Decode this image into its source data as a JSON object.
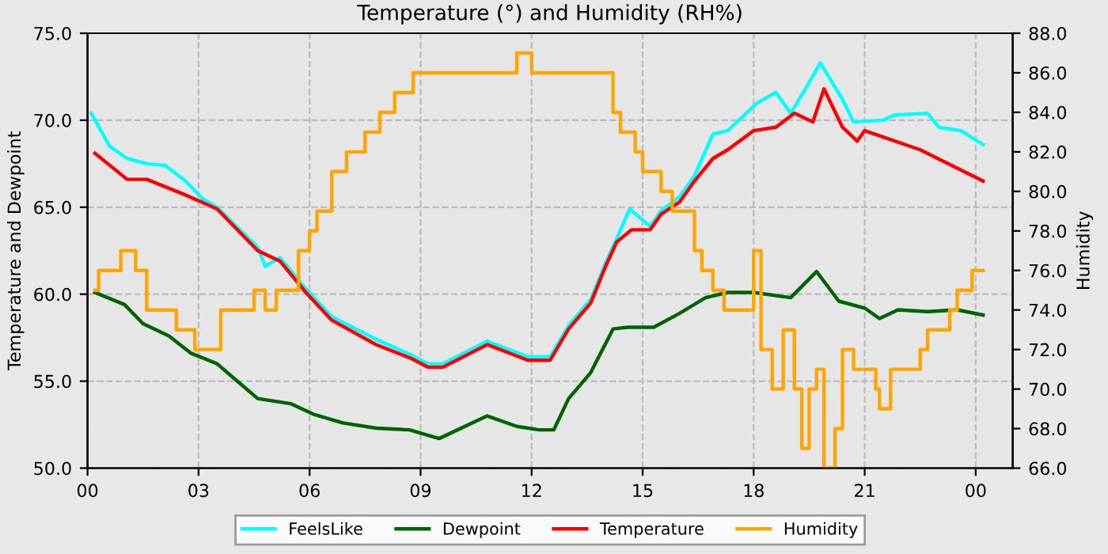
{
  "chart_data": {
    "type": "line",
    "title": "Temperature (°) and Humidity (RH%)",
    "ylabel": "Temperature and Dewpoint",
    "y2label": "Humidity",
    "xlim": [
      0,
      25
    ],
    "xticks": [
      {
        "value": 0,
        "label": "00"
      },
      {
        "value": 3,
        "label": "03"
      },
      {
        "value": 6,
        "label": "06"
      },
      {
        "value": 9,
        "label": "09"
      },
      {
        "value": 12,
        "label": "12"
      },
      {
        "value": 15,
        "label": "15"
      },
      {
        "value": 18,
        "label": "18"
      },
      {
        "value": 21,
        "label": "21"
      },
      {
        "value": 24,
        "label": "00"
      }
    ],
    "ylim": [
      50,
      75
    ],
    "yticks": [
      {
        "value": 50,
        "label": "50.0"
      },
      {
        "value": 55,
        "label": "55.0"
      },
      {
        "value": 60,
        "label": "60.0"
      },
      {
        "value": 65,
        "label": "65.0"
      },
      {
        "value": 70,
        "label": "70.0"
      },
      {
        "value": 75,
        "label": "75.0"
      }
    ],
    "y2lim": [
      66,
      88
    ],
    "y2ticks": [
      {
        "value": 66,
        "label": "66.0"
      },
      {
        "value": 68,
        "label": "68.0"
      },
      {
        "value": 70,
        "label": "70.0"
      },
      {
        "value": 72,
        "label": "72.0"
      },
      {
        "value": 74,
        "label": "74.0"
      },
      {
        "value": 76,
        "label": "76.0"
      },
      {
        "value": 78,
        "label": "78.0"
      },
      {
        "value": 80,
        "label": "80.0"
      },
      {
        "value": 82,
        "label": "82.0"
      },
      {
        "value": 84,
        "label": "84.0"
      },
      {
        "value": 86,
        "label": "86.0"
      },
      {
        "value": 88,
        "label": "88.0"
      }
    ],
    "grid": true,
    "legend": "bottom",
    "line_style": "solid",
    "marker": "none",
    "series": [
      {
        "name": "FeelsLike",
        "color": "#00ffff",
        "x": [
          0.1,
          0.6,
          1.07,
          1.6,
          2.1,
          2.65,
          3.1,
          3.5,
          4.6,
          4.8,
          5.2,
          5.9,
          6.6,
          7.8,
          8.75,
          9.2,
          9.6,
          10.8,
          11.9,
          12.5,
          13.0,
          13.6,
          14.0,
          14.3,
          14.65,
          15.2,
          15.5,
          16.0,
          16.4,
          16.9,
          17.3,
          18.1,
          18.6,
          19.0,
          19.4,
          19.8,
          20.4,
          20.7,
          21.5,
          21.8,
          22.7,
          23.0,
          23.6,
          24.2
        ],
        "values": [
          70.4,
          68.5,
          67.8,
          67.5,
          67.4,
          66.5,
          65.5,
          65.0,
          62.7,
          61.6,
          62.1,
          60.3,
          58.7,
          57.4,
          56.5,
          56.0,
          56.0,
          57.3,
          56.4,
          56.4,
          58.2,
          59.7,
          61.8,
          63.2,
          64.9,
          63.9,
          64.8,
          65.6,
          66.8,
          69.2,
          69.4,
          71.0,
          71.6,
          70.4,
          71.8,
          73.3,
          71.2,
          69.9,
          70.0,
          70.3,
          70.4,
          69.6,
          69.4,
          68.6
        ]
      },
      {
        "name": "Dewpoint",
        "color": "#006400",
        "x": [
          0.2,
          1.0,
          1.5,
          2.2,
          2.8,
          3.5,
          4.1,
          4.6,
          5.5,
          6.1,
          6.9,
          7.8,
          8.7,
          9.5,
          10.8,
          11.6,
          12.2,
          12.6,
          13.0,
          13.6,
          14.2,
          14.6,
          15.3,
          16.0,
          16.7,
          17.3,
          18.0,
          19.0,
          19.7,
          20.3,
          21.0,
          21.4,
          21.9,
          22.7,
          23.5,
          24.2
        ],
        "values": [
          60.1,
          59.4,
          58.3,
          57.6,
          56.6,
          56.0,
          54.9,
          54.0,
          53.7,
          53.1,
          52.6,
          52.3,
          52.2,
          51.7,
          53.0,
          52.4,
          52.2,
          52.2,
          54.0,
          55.5,
          58.0,
          58.1,
          58.1,
          58.9,
          59.8,
          60.1,
          60.1,
          59.8,
          61.3,
          59.6,
          59.2,
          58.6,
          59.1,
          59.0,
          59.1,
          58.8
        ]
      },
      {
        "name": "Temperature",
        "color": "#ff0000",
        "x": [
          0.2,
          1.07,
          1.6,
          2.65,
          3.5,
          4.6,
          5.2,
          5.9,
          6.6,
          7.8,
          8.75,
          9.2,
          9.6,
          10.8,
          11.9,
          12.5,
          13.0,
          13.6,
          14.0,
          14.3,
          14.7,
          15.2,
          15.5,
          16.0,
          16.4,
          16.9,
          17.3,
          18.0,
          18.6,
          19.1,
          19.6,
          19.9,
          20.4,
          20.8,
          21.0,
          22.5,
          24.2
        ],
        "values": [
          68.1,
          66.6,
          66.6,
          65.7,
          64.9,
          62.5,
          61.9,
          60.1,
          58.5,
          57.1,
          56.3,
          55.8,
          55.8,
          57.1,
          56.2,
          56.2,
          58.0,
          59.5,
          61.6,
          63.0,
          63.7,
          63.7,
          64.6,
          65.3,
          66.5,
          67.8,
          68.3,
          69.4,
          69.6,
          70.4,
          69.9,
          71.8,
          69.6,
          68.8,
          69.4,
          68.3,
          66.5
        ]
      },
      {
        "name": "Humidity",
        "color": "#ffa500",
        "type": "step",
        "axis": "y2",
        "x": [
          0.2,
          0.3,
          0.9,
          1.3,
          1.6,
          2.4,
          2.9,
          3.6,
          4.5,
          4.8,
          5.1,
          5.7,
          6.0,
          6.2,
          6.6,
          7.0,
          7.5,
          7.9,
          8.3,
          8.8,
          11.6,
          12.0,
          14.2,
          14.4,
          14.8,
          15.0,
          15.5,
          15.8,
          16.4,
          16.6,
          16.9,
          17.2,
          18.0,
          18.2,
          18.5,
          18.8,
          19.1,
          19.3,
          19.5,
          19.7,
          19.9,
          20.2,
          20.4,
          20.7,
          21.3,
          21.4,
          21.7,
          22.5,
          22.7,
          23.3,
          23.5,
          23.9,
          24.2
        ],
        "values": [
          75,
          76,
          77,
          76,
          74,
          73,
          72,
          74,
          75,
          74,
          75,
          77,
          78,
          79,
          81,
          82,
          83,
          84,
          85,
          86,
          87,
          86,
          84,
          83,
          82,
          81,
          80,
          79,
          77,
          76,
          75,
          74,
          77,
          72,
          70,
          73,
          70,
          67,
          70,
          71,
          66,
          68,
          72,
          71,
          70,
          69,
          71,
          72,
          73,
          74,
          75,
          76,
          76
        ]
      }
    ]
  }
}
